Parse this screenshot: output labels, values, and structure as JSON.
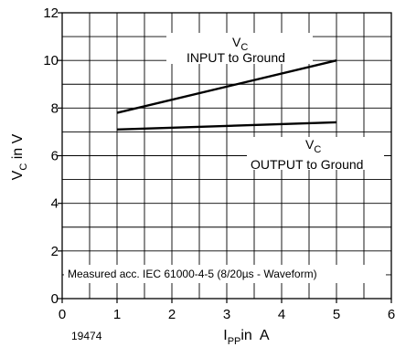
{
  "chart_data": {
    "type": "line",
    "xlabel": {
      "main": "I",
      "sub": "PP",
      "rest": "in  A"
    },
    "ylabel": {
      "main": "V",
      "sub": "C",
      "rest": " in  V"
    },
    "xlim": [
      0,
      6
    ],
    "ylim": [
      0,
      12
    ],
    "x_ticks": [
      0,
      1,
      2,
      3,
      4,
      5,
      6
    ],
    "y_ticks": [
      0,
      2,
      4,
      6,
      8,
      10,
      12
    ],
    "x_minor_step": 0.5,
    "y_minor_step": 1,
    "grid": true,
    "series": [
      {
        "x": [
          1,
          5
        ],
        "y": [
          7.8,
          10.0
        ]
      },
      {
        "x": [
          1,
          5
        ],
        "y": [
          7.1,
          7.4
        ]
      }
    ],
    "annotations": {
      "input": {
        "v": "V",
        "sub": "C",
        "text": "INPUT  to Ground"
      },
      "output": {
        "v": "V",
        "sub": "C",
        "text": "OUTPUT  to Ground"
      },
      "note": "Measured acc. IEC 61000-4-5 (8/20µs - Waveform)",
      "figure_number": "19474"
    }
  }
}
